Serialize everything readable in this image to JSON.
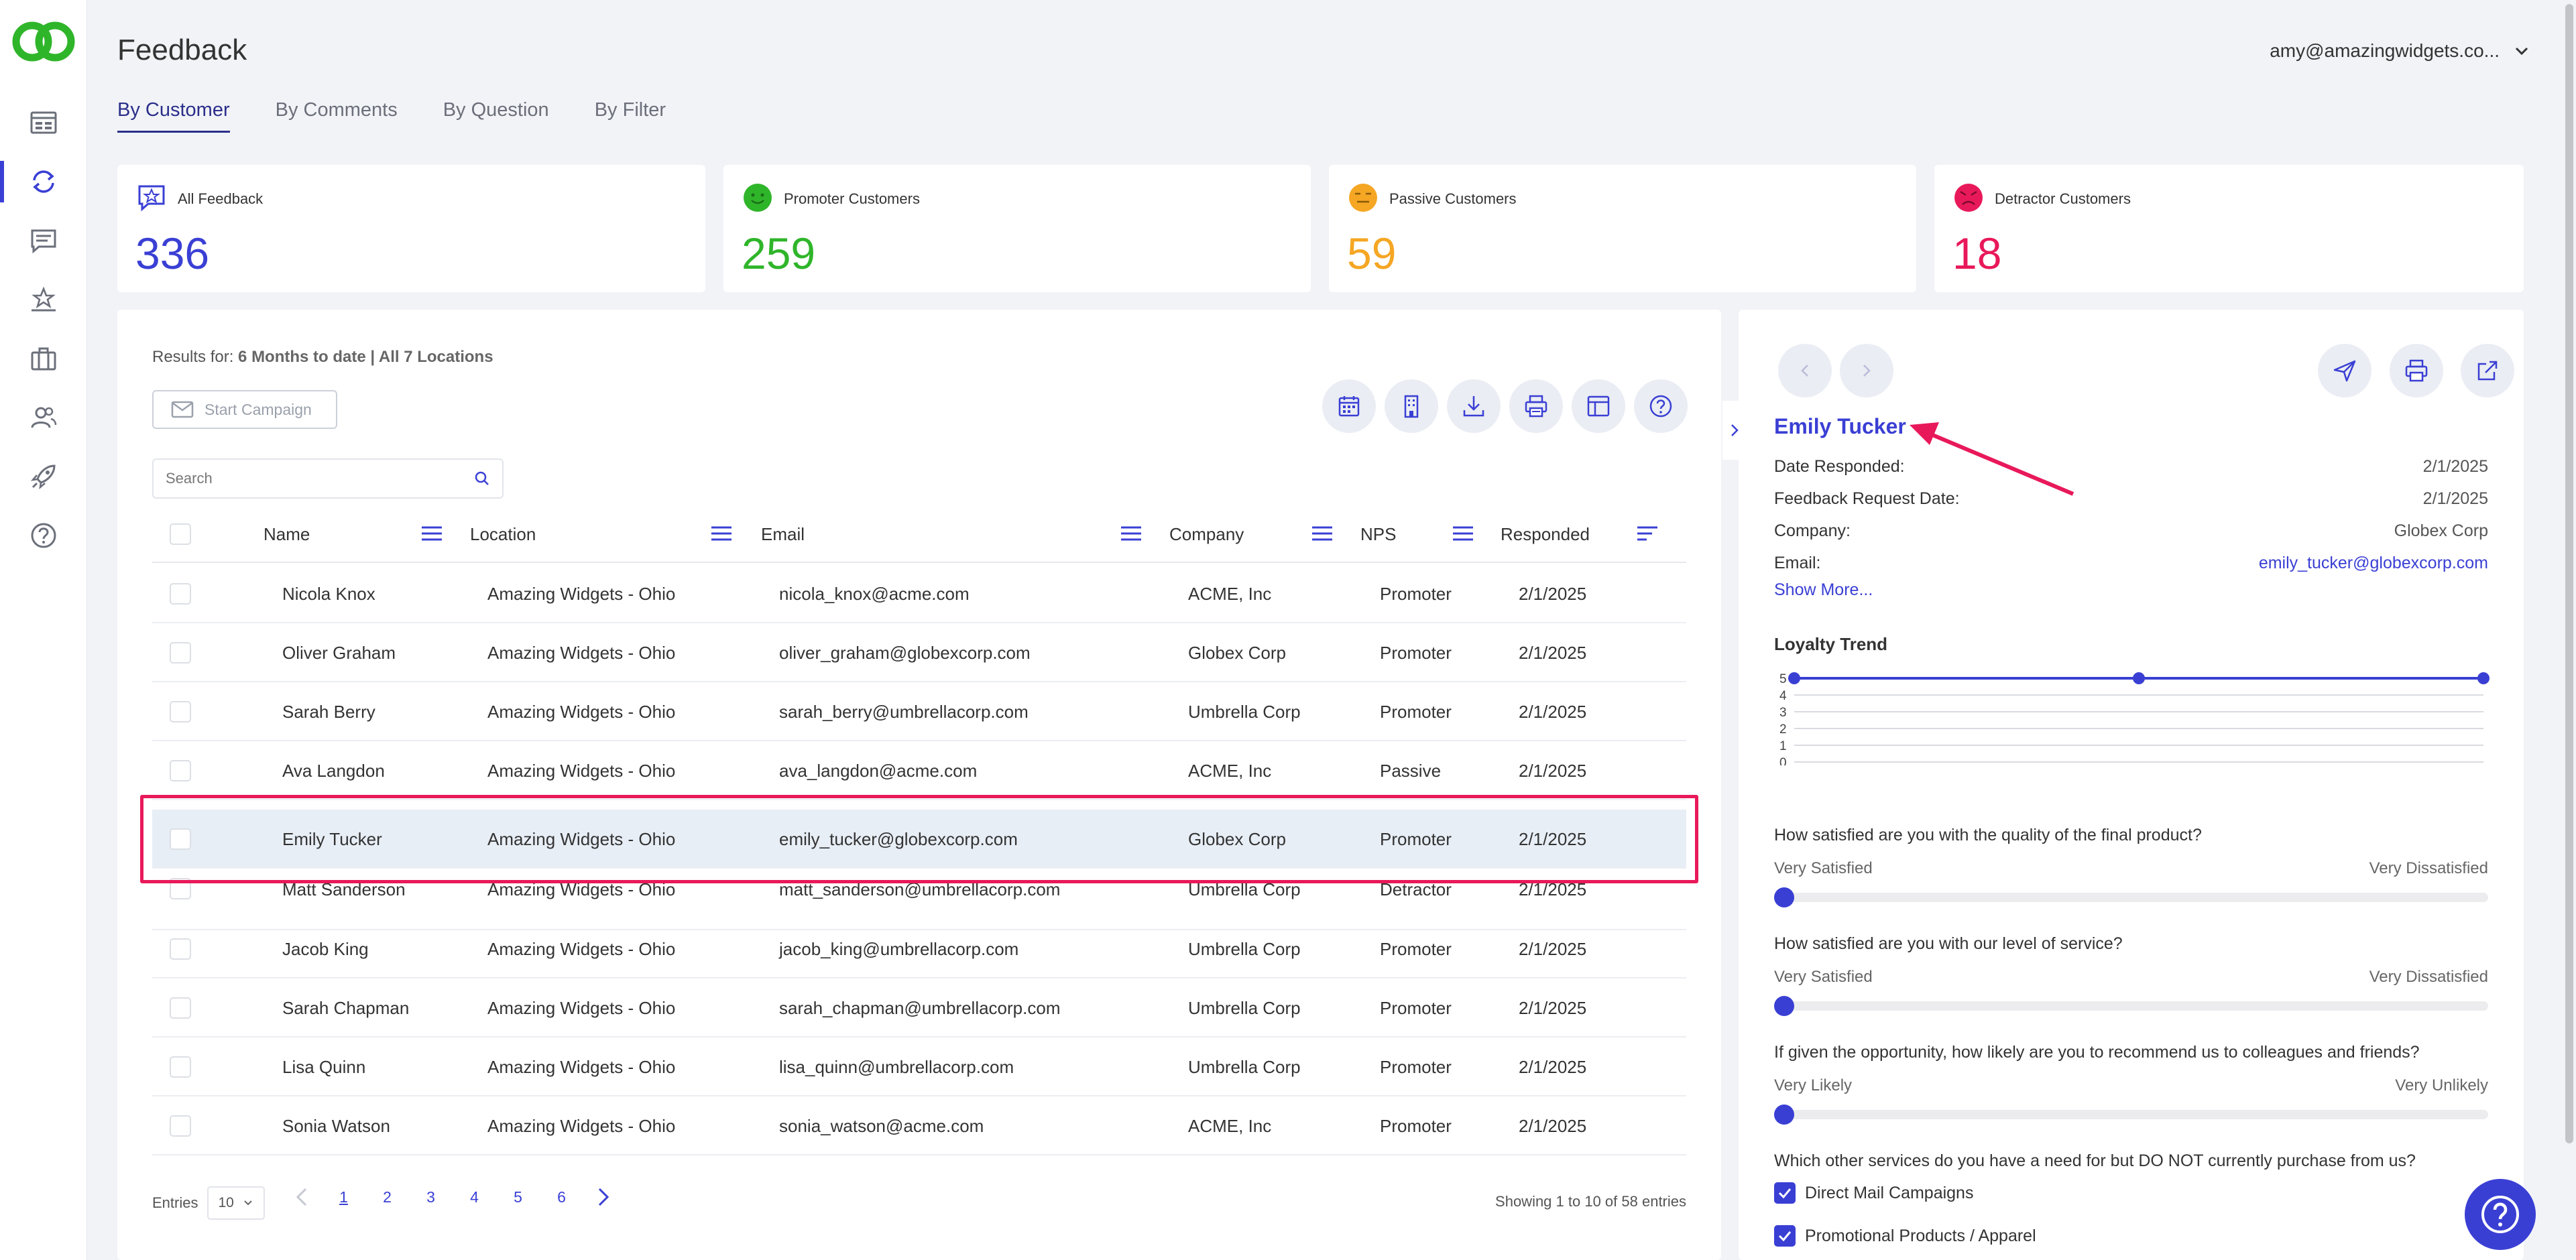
{
  "app": {
    "title": "Feedback",
    "brand_color": "#3a3fd4",
    "logo_color": "#2fb52a"
  },
  "user": {
    "email": "amy@amazingwidgets.co..."
  },
  "tabs": [
    {
      "label": "By Customer"
    },
    {
      "label": "By Comments"
    },
    {
      "label": "By Question"
    },
    {
      "label": "By Filter"
    }
  ],
  "kpis": {
    "all": {
      "label": "All Feedback",
      "value": "336",
      "color": "#3a3fd4"
    },
    "promoter": {
      "label": "Promoter Customers",
      "value": "259",
      "color": "#2fb52a"
    },
    "passive": {
      "label": "Passive Customers",
      "value": "59",
      "color": "#f5a623"
    },
    "detractor": {
      "label": "Detractor Customers",
      "value": "18",
      "color": "#e8195a"
    }
  },
  "results": {
    "prefix": "Results for:",
    "filter": "6 Months to date | All 7 Locations"
  },
  "campaign_button": "Start Campaign",
  "search": {
    "placeholder": "Search"
  },
  "columns": [
    "Name",
    "Location",
    "Email",
    "Company",
    "NPS",
    "Responded"
  ],
  "rows": [
    {
      "name": "Nicola Knox",
      "location": "Amazing Widgets - Ohio",
      "email": "nicola_knox@acme.com",
      "company": "ACME, Inc",
      "nps": "Promoter",
      "responded": "2/1/2025"
    },
    {
      "name": "Oliver Graham",
      "location": "Amazing Widgets - Ohio",
      "email": "oliver_graham@globexcorp.com",
      "company": "Globex Corp",
      "nps": "Promoter",
      "responded": "2/1/2025"
    },
    {
      "name": "Sarah Berry",
      "location": "Amazing Widgets - Ohio",
      "email": "sarah_berry@umbrellacorp.com",
      "company": "Umbrella Corp",
      "nps": "Promoter",
      "responded": "2/1/2025"
    },
    {
      "name": "Ava Langdon",
      "location": "Amazing Widgets - Ohio",
      "email": "ava_langdon@acme.com",
      "company": "ACME, Inc",
      "nps": "Passive",
      "responded": "2/1/2025"
    },
    {
      "name": "Emily Tucker",
      "location": "Amazing Widgets - Ohio",
      "email": "emily_tucker@globexcorp.com",
      "company": "Globex Corp",
      "nps": "Promoter",
      "responded": "2/1/2025"
    },
    {
      "name": "Matt Sanderson",
      "location": "Amazing Widgets - Ohio",
      "email": "matt_sanderson@umbrellacorp.com",
      "company": "Umbrella Corp",
      "nps": "Detractor",
      "responded": "2/1/2025"
    },
    {
      "name": "Jacob King",
      "location": "Amazing Widgets - Ohio",
      "email": "jacob_king@umbrellacorp.com",
      "company": "Umbrella Corp",
      "nps": "Promoter",
      "responded": "2/1/2025"
    },
    {
      "name": "Sarah Chapman",
      "location": "Amazing Widgets - Ohio",
      "email": "sarah_chapman@umbrellacorp.com",
      "company": "Umbrella Corp",
      "nps": "Promoter",
      "responded": "2/1/2025"
    },
    {
      "name": "Lisa Quinn",
      "location": "Amazing Widgets - Ohio",
      "email": "lisa_quinn@umbrellacorp.com",
      "company": "Umbrella Corp",
      "nps": "Promoter",
      "responded": "2/1/2025"
    },
    {
      "name": "Sonia Watson",
      "location": "Amazing Widgets - Ohio",
      "email": "sonia_watson@acme.com",
      "company": "ACME, Inc",
      "nps": "Promoter",
      "responded": "2/1/2025"
    }
  ],
  "pagination": {
    "entries_label": "Entries",
    "entries_value": "10",
    "pages": [
      "1",
      "2",
      "3",
      "4",
      "5",
      "6"
    ],
    "current_page": "1",
    "showing": "Showing 1 to 10 of 58 entries"
  },
  "detail": {
    "name": "Emily Tucker",
    "fields": [
      {
        "label": "Date Responded:",
        "value": "2/1/2025"
      },
      {
        "label": "Feedback Request Date:",
        "value": "2/1/2025"
      },
      {
        "label": "Company:",
        "value": "Globex Corp"
      },
      {
        "label": "Email:",
        "value": "emily_tucker@globexcorp.com"
      }
    ],
    "show_more": "Show More...",
    "loyalty_title": "Loyalty Trend",
    "questions": [
      {
        "text": "How satisfied are you with the quality of the final product?",
        "low": "Very Satisfied",
        "high": "Very Dissatisfied",
        "value": 0
      },
      {
        "text": "How satisfied are you with our level of service?",
        "low": "Very Satisfied",
        "high": "Very Dissatisfied",
        "value": 0
      },
      {
        "text": "If given the opportunity, how likely are you to recommend us to colleagues and friends?",
        "low": "Very Likely",
        "high": "Very Unlikely",
        "value": 0
      }
    ],
    "services_question": "Which other services do you have a need for but DO NOT currently purchase from us?",
    "services": [
      "Direct Mail Campaigns",
      "Promotional Products / Apparel"
    ]
  },
  "chart_data": {
    "type": "line",
    "title": "Loyalty Trend",
    "x": [
      1,
      2,
      3
    ],
    "values": [
      5,
      5,
      5
    ],
    "yticks": [
      "0",
      "1",
      "2",
      "3",
      "4",
      "5"
    ],
    "ylim": [
      0,
      5
    ]
  }
}
